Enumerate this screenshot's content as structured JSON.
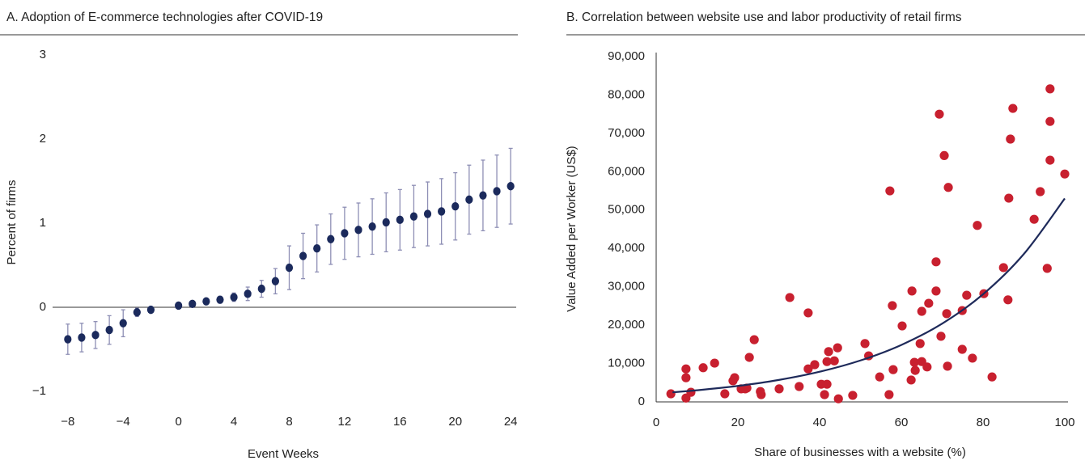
{
  "chart_data": [
    {
      "type": "errorbar",
      "title": "A. Adoption of E-commerce technologies after COVID-19",
      "xlabel": "Event Weeks",
      "ylabel": "Percent of firms",
      "x": [
        -8,
        -7,
        -6,
        -5,
        -4,
        -3,
        -2,
        0,
        1,
        2,
        3,
        4,
        5,
        6,
        7,
        8,
        9,
        10,
        11,
        12,
        13,
        14,
        15,
        16,
        17,
        18,
        19,
        20,
        21,
        22,
        23,
        24
      ],
      "values": [
        -0.38,
        -0.36,
        -0.33,
        -0.27,
        -0.19,
        -0.06,
        -0.03,
        0.02,
        0.04,
        0.07,
        0.09,
        0.12,
        0.16,
        0.22,
        0.31,
        0.47,
        0.61,
        0.7,
        0.81,
        0.88,
        0.92,
        0.96,
        1.01,
        1.04,
        1.08,
        1.11,
        1.14,
        1.2,
        1.28,
        1.33,
        1.38,
        1.44
      ],
      "errors": [
        0.18,
        0.17,
        0.16,
        0.17,
        0.16,
        0.05,
        0.03,
        0.02,
        0.03,
        0.03,
        0.04,
        0.05,
        0.08,
        0.1,
        0.15,
        0.26,
        0.27,
        0.28,
        0.3,
        0.31,
        0.32,
        0.33,
        0.35,
        0.36,
        0.37,
        0.38,
        0.39,
        0.4,
        0.41,
        0.42,
        0.43,
        0.45
      ],
      "color": "#1b2a5c",
      "error_color": "#8e8fb5",
      "xlim": [
        -9.1,
        24.4
      ],
      "ylim": [
        -1,
        3
      ],
      "xticks": [
        {
          "value": -8,
          "label": "−8"
        },
        {
          "value": -4,
          "label": "−4"
        },
        0,
        4,
        8,
        12,
        16,
        20,
        24
      ],
      "yticks": [
        {
          "value": -1,
          "label": "−1"
        },
        0,
        1,
        2,
        3
      ]
    },
    {
      "type": "scatter",
      "title": "B. Correlation between website use and labor productivity of retail firms",
      "xlabel": "Share of businesses with a website (%)",
      "ylabel": "Value Added per Worker (US$)",
      "x": [
        3.6,
        7.3,
        7.3,
        7.3,
        8.5,
        11.5,
        14.3,
        16.8,
        18.8,
        19.2,
        20.8,
        21.8,
        22.2,
        22.8,
        24,
        25.5,
        25.7,
        30.1,
        32.7,
        35,
        37.2,
        37.2,
        38.8,
        40.4,
        41.2,
        41.8,
        41.8,
        42.2,
        43.6,
        44.4,
        44.6,
        48.1,
        51.1,
        52,
        54.7,
        57.8,
        58,
        57,
        57.2,
        60.2,
        62.6,
        62.4,
        63.2,
        63.4,
        64.6,
        65,
        65,
        66.3,
        66.7,
        68.5,
        68.5,
        69.3,
        69.7,
        70.5,
        71.1,
        71.5,
        71.3,
        74.9,
        74.9,
        76,
        77.4,
        78.6,
        80.2,
        82.2,
        85,
        86.1,
        86.3,
        86.7,
        87.3,
        96.4,
        92.5,
        94,
        96.4,
        96.4,
        95.7,
        100
      ],
      "values": [
        2100,
        8600,
        6300,
        1000,
        2500,
        8900,
        10100,
        2100,
        5500,
        6300,
        3400,
        3400,
        3600,
        11600,
        16200,
        2700,
        1900,
        3400,
        27200,
        4000,
        23200,
        8600,
        9700,
        4600,
        1900,
        4600,
        10500,
        13100,
        10700,
        14100,
        800,
        1700,
        15200,
        12000,
        6500,
        25100,
        8400,
        1900,
        55000,
        19800,
        28900,
        5700,
        10300,
        8200,
        15200,
        10500,
        23600,
        9100,
        25700,
        36500,
        28900,
        75000,
        17100,
        64200,
        23000,
        55900,
        9300,
        13700,
        23800,
        27800,
        11400,
        46000,
        28200,
        6500,
        35000,
        26600,
        53100,
        68500,
        76500,
        63000,
        47600,
        54800,
        73100,
        81600,
        34800,
        59400
      ],
      "color": "#c8202f",
      "trend": {
        "x": [
          4,
          10,
          20,
          30,
          40,
          50,
          60,
          70,
          80,
          90,
          100
        ],
        "values": [
          2504,
          3024,
          4157,
          5714,
          7855,
          10799,
          14845,
          20408,
          28054,
          38566,
          53018
        ],
        "color": "#1e2a5a"
      },
      "xlim": [
        0,
        100
      ],
      "ylim": [
        0,
        90000
      ],
      "xticks": [
        0,
        20,
        40,
        60,
        80,
        100
      ],
      "yticks": [
        0,
        {
          "value": 10000,
          "label": "10,000"
        },
        {
          "value": 20000,
          "label": "20,000"
        },
        {
          "value": 30000,
          "label": "30,000"
        },
        {
          "value": 40000,
          "label": "40,000"
        },
        {
          "value": 50000,
          "label": "50,000"
        },
        {
          "value": 60000,
          "label": "60,000"
        },
        {
          "value": 70000,
          "label": "70,000"
        },
        {
          "value": 80000,
          "label": "80,000"
        },
        {
          "value": 90000,
          "label": "90,000"
        }
      ]
    }
  ]
}
